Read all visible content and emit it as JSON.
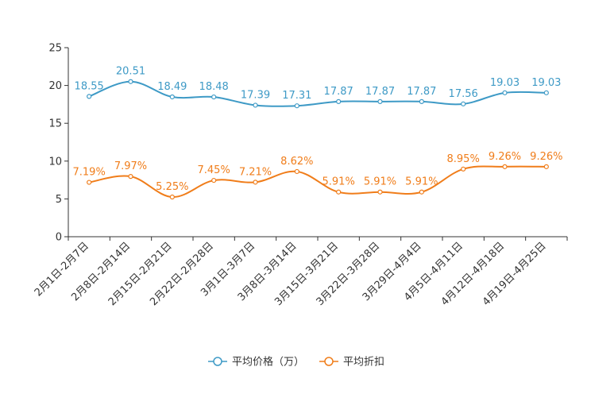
{
  "chart_data": {
    "type": "line",
    "title": "",
    "xlabel": "",
    "ylabel": "",
    "ylim": [
      0,
      25
    ],
    "yticks": [
      0,
      5,
      10,
      15,
      20,
      25
    ],
    "grid": false,
    "legend_position": "bottom-center",
    "categories": [
      "2月1日-2月7日",
      "2月8日-2月14日",
      "2月15日-2月21日",
      "2月22日-2月28日",
      "3月1日-3月7日",
      "3月8日-3月14日",
      "3月15日-3月21日",
      "3月22日-3月28日",
      "3月29日-4月4日",
      "4月5日-4月11日",
      "4月12日-4月18日",
      "4月19日-4月25日"
    ],
    "series": [
      {
        "name": "平均价格（万）",
        "color": "#3e9ac6",
        "values": [
          18.55,
          20.51,
          18.49,
          18.48,
          17.39,
          17.31,
          17.87,
          17.87,
          17.87,
          17.56,
          19.03,
          19.03
        ],
        "labels": [
          "18.55",
          "20.51",
          "18.49",
          "18.48",
          "17.39",
          "17.31",
          "17.87",
          "17.87",
          "17.87",
          "17.56",
          "19.03",
          "19.03"
        ]
      },
      {
        "name": "平均折扣",
        "color": "#f07d1a",
        "values": [
          7.19,
          7.97,
          5.25,
          7.45,
          7.21,
          8.62,
          5.91,
          5.91,
          5.91,
          8.95,
          9.26,
          9.26
        ],
        "labels": [
          "7.19%",
          "7.97%",
          "5.25%",
          "7.45%",
          "7.21%",
          "8.62%",
          "5.91%",
          "5.91%",
          "5.91%",
          "8.95%",
          "9.26%",
          "9.26%"
        ]
      }
    ]
  }
}
